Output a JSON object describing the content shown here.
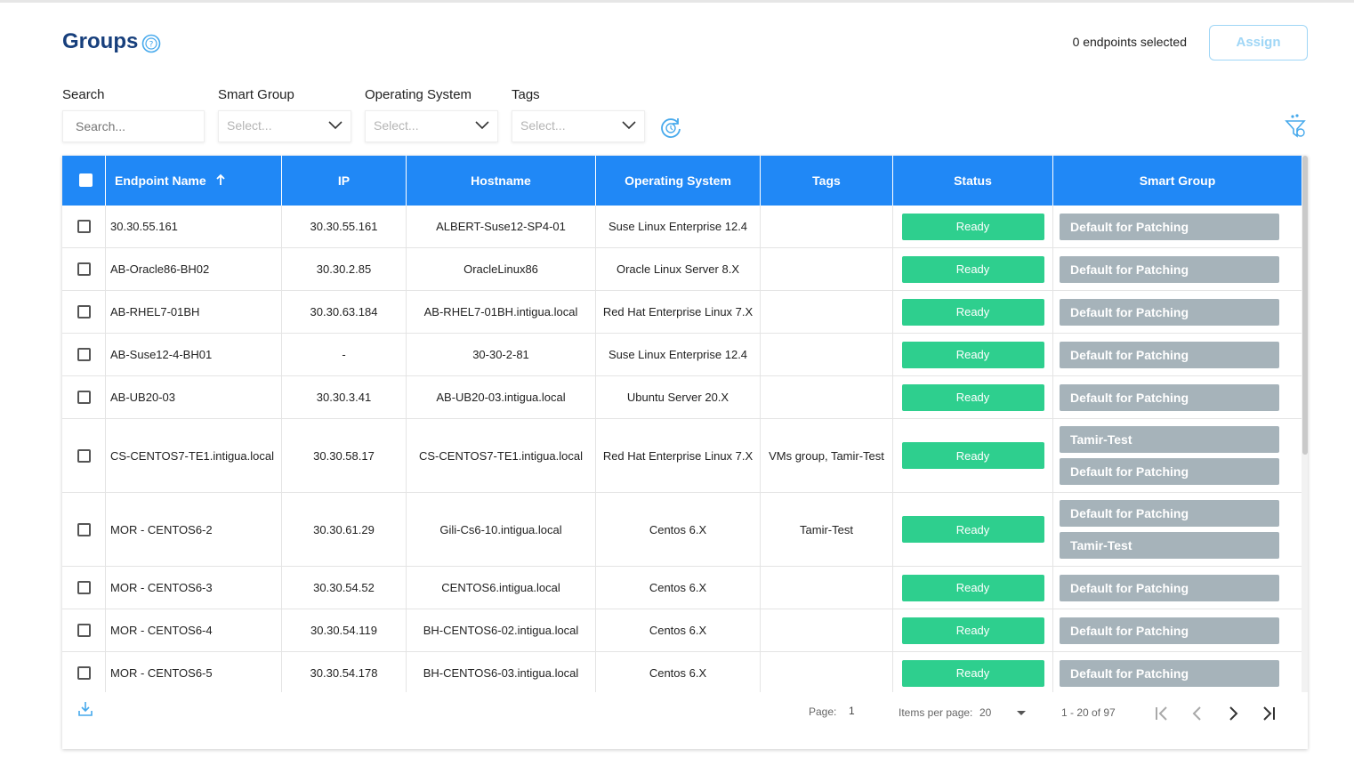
{
  "header": {
    "title": "Groups",
    "selected_count": "0 endpoints selected",
    "assign_label": "Assign"
  },
  "filters": {
    "search_label": "Search",
    "search_placeholder": "Search...",
    "smart_group_label": "Smart Group",
    "smart_group_value": "Select...",
    "os_label": "Operating System",
    "os_value": "Select...",
    "tags_label": "Tags",
    "tags_value": "Select..."
  },
  "table": {
    "columns": [
      "Endpoint Name",
      "IP",
      "Hostname",
      "Operating System",
      "Tags",
      "Status",
      "Smart Group"
    ],
    "sort_column": "Endpoint Name",
    "rows": [
      {
        "name": "30.30.55.161",
        "ip": "30.30.55.161",
        "hostname": "ALBERT-Suse12-SP4-01",
        "os": "Suse Linux Enterprise 12.4",
        "tags": "",
        "status": "Ready",
        "groups": [
          "Default for Patching"
        ]
      },
      {
        "name": "AB-Oracle86-BH02",
        "ip": "30.30.2.85",
        "hostname": "OracleLinux86",
        "os": "Oracle Linux Server 8.X",
        "tags": "",
        "status": "Ready",
        "groups": [
          "Default for Patching"
        ]
      },
      {
        "name": "AB-RHEL7-01BH",
        "ip": "30.30.63.184",
        "hostname": "AB-RHEL7-01BH.intigua.local",
        "os": "Red Hat Enterprise Linux 7.X",
        "tags": "",
        "status": "Ready",
        "groups": [
          "Default for Patching"
        ]
      },
      {
        "name": "AB-Suse12-4-BH01",
        "ip": "-",
        "hostname": "30-30-2-81",
        "os": "Suse Linux Enterprise 12.4",
        "tags": "",
        "status": "Ready",
        "groups": [
          "Default for Patching"
        ]
      },
      {
        "name": "AB-UB20-03",
        "ip": "30.30.3.41",
        "hostname": "AB-UB20-03.intigua.local",
        "os": "Ubuntu Server 20.X",
        "tags": "",
        "status": "Ready",
        "groups": [
          "Default for Patching"
        ]
      },
      {
        "name": "CS-CENTOS7-TE1.intigua.local",
        "ip": "30.30.58.17",
        "hostname": "CS-CENTOS7-TE1.intigua.local",
        "os": "Red Hat Enterprise Linux 7.X",
        "tags": "VMs group, Tamir-Test",
        "status": "Ready",
        "groups": [
          "Tamir-Test",
          "Default for Patching"
        ]
      },
      {
        "name": "MOR - CENTOS6-2",
        "ip": "30.30.61.29",
        "hostname": "Gili-Cs6-10.intigua.local",
        "os": "Centos 6.X",
        "tags": "Tamir-Test",
        "status": "Ready",
        "groups": [
          "Default for Patching",
          "Tamir-Test"
        ]
      },
      {
        "name": "MOR - CENTOS6-3",
        "ip": "30.30.54.52",
        "hostname": "CENTOS6.intigua.local",
        "os": "Centos 6.X",
        "tags": "",
        "status": "Ready",
        "groups": [
          "Default for Patching"
        ]
      },
      {
        "name": "MOR - CENTOS6-4",
        "ip": "30.30.54.119",
        "hostname": "BH-CENTOS6-02.intigua.local",
        "os": "Centos 6.X",
        "tags": "",
        "status": "Ready",
        "groups": [
          "Default for Patching"
        ]
      },
      {
        "name": "MOR - CENTOS6-5",
        "ip": "30.30.54.178",
        "hostname": "BH-CENTOS6-03.intigua.local",
        "os": "Centos 6.X",
        "tags": "",
        "status": "Ready",
        "groups": [
          "Default for Patching"
        ]
      }
    ]
  },
  "pagination": {
    "page_label": "Page:",
    "page_value": "1",
    "items_label": "Items per page:",
    "items_value": "20",
    "range": "1 - 20 of 97"
  },
  "colors": {
    "header_bg": "#2088f6",
    "title": "#173f7c",
    "status_ready": "#2ecf8e",
    "smart_group_badge": "#a6b3ba"
  },
  "icons": [
    "help-icon",
    "chevron-down-icon",
    "refresh-icon",
    "filter-icon",
    "sort-arrow-up-icon",
    "download-icon",
    "first-page-icon",
    "prev-page-icon",
    "next-page-icon",
    "last-page-icon"
  ]
}
